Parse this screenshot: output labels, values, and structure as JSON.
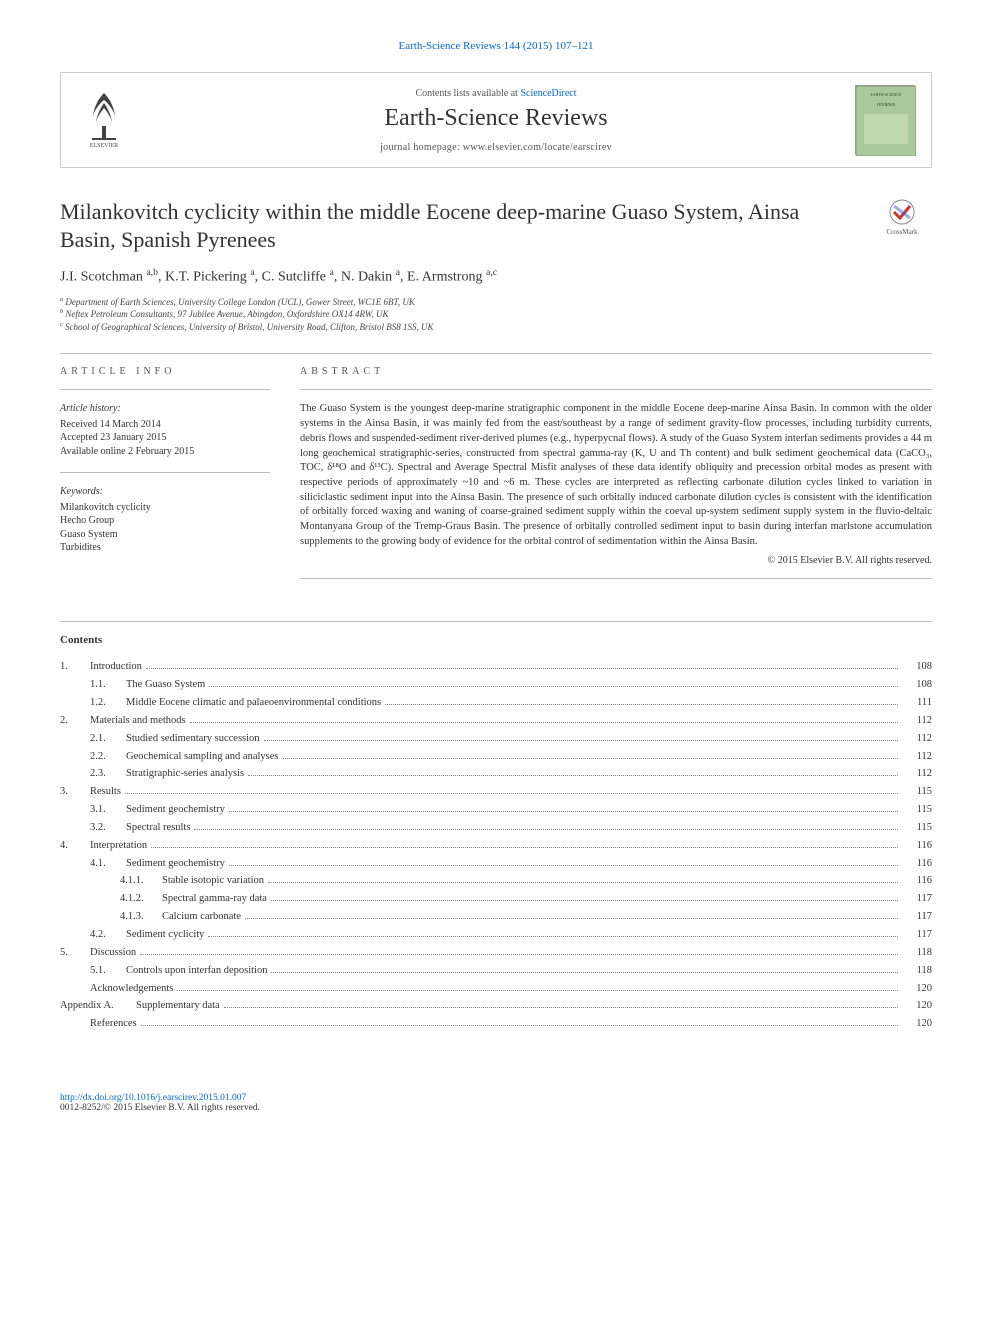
{
  "header_citation_link": "Earth-Science Reviews 144 (2015) 107–121",
  "masthead": {
    "contents_prefix": "Contents lists available at ",
    "contents_link": "ScienceDirect",
    "journal_name": "Earth-Science Reviews",
    "homepage_prefix": "journal homepage: ",
    "homepage_url": "www.elsevier.com/locate/earscirev"
  },
  "article": {
    "title": "Milankovitch cyclicity within the middle Eocene deep-marine Guaso System, Ainsa Basin, Spanish Pyrenees",
    "crossmark_label": "CrossMark",
    "authors": "J.I. Scotchman ",
    "author_sup_1": "a,b",
    "author_2": ", K.T. Pickering ",
    "author_sup_2": "a",
    "author_3": ", C. Sutcliffe ",
    "author_sup_3": "a",
    "author_4": ", N. Dakin ",
    "author_sup_4": "a",
    "author_5": ", E. Armstrong ",
    "author_sup_5": "a,c",
    "affiliations": [
      {
        "mark": "a",
        "text": "Department of Earth Sciences, University College London (UCL), Gower Street, WC1E 6BT, UK"
      },
      {
        "mark": "b",
        "text": "Neftex Petroleum Consultants, 97 Jubilee Avenue, Abingdon, Oxfordshire OX14 4RW, UK"
      },
      {
        "mark": "c",
        "text": "School of Geographical Sciences, University of Bristol, University Road, Clifton, Bristol BS8 1SS, UK"
      }
    ]
  },
  "info": {
    "heading": "ARTICLE INFO",
    "history_label": "Article history:",
    "history": [
      "Received 14 March 2014",
      "Accepted 23 January 2015",
      "Available online 2 February 2015"
    ],
    "keywords_label": "Keywords:",
    "keywords": [
      "Milankovitch cyclicity",
      "Hecho Group",
      "Guaso System",
      "Turbidites"
    ]
  },
  "abstract": {
    "heading": "ABSTRACT",
    "text": "The Guaso System is the youngest deep-marine stratigraphic component in the middle Eocene deep-marine Ainsa Basin. In common with the older systems in the Ainsa Basin, it was mainly fed from the east/southeast by a range of sediment gravity-flow processes, including turbidity currents, debris flows and suspended-sediment river-derived plumes (e.g., hyperpycnal flows). A study of the Guaso System interfan sediments provides a 44 m long geochemical stratigraphic-series, constructed from spectral gamma-ray (K, U and Th content) and bulk sediment geochemical data (CaCO₃, TOC, δ¹⁸O and δ¹³C). Spectral and Average Spectral Misfit analyses of these data identify obliquity and precession orbital modes as present with respective periods of approximately ~10 and ~6 m. These cycles are interpreted as reflecting carbonate dilution cycles linked to variation in siliciclastic sediment input into the Ainsa Basin. The presence of such orbitally induced carbonate dilution cycles is consistent with the identification of orbitally forced waxing and waning of coarse-grained sediment supply within the coeval up-system sediment supply system in the fluvio-deltaic Montanyana Group of the Tremp-Graus Basin. The presence of orbitally controlled sediment input to basin during interfan marlstone accumulation supplements to the growing body of evidence for the orbital control of sedimentation within the Ainsa Basin.",
    "copyright": "© 2015 Elsevier B.V. All rights reserved."
  },
  "contents": {
    "heading": "Contents",
    "items": [
      {
        "level": 0,
        "num": "1.",
        "label": "Introduction",
        "page": "108"
      },
      {
        "level": 1,
        "num": "1.1.",
        "label": "The Guaso System",
        "page": "108"
      },
      {
        "level": 1,
        "num": "1.2.",
        "label": "Middle Eocene climatic and palaeoenvironmental conditions",
        "page": "111"
      },
      {
        "level": 0,
        "num": "2.",
        "label": "Materials and methods",
        "page": "112"
      },
      {
        "level": 1,
        "num": "2.1.",
        "label": "Studied sedimentary succession",
        "page": "112"
      },
      {
        "level": 1,
        "num": "2.2.",
        "label": "Geochemical sampling and analyses",
        "page": "112"
      },
      {
        "level": 1,
        "num": "2.3.",
        "label": "Stratigraphic-series analysis",
        "page": "112"
      },
      {
        "level": 0,
        "num": "3.",
        "label": "Results",
        "page": "115"
      },
      {
        "level": 1,
        "num": "3.1.",
        "label": "Sediment geochemistry",
        "page": "115"
      },
      {
        "level": 1,
        "num": "3.2.",
        "label": "Spectral results",
        "page": "115"
      },
      {
        "level": 0,
        "num": "4.",
        "label": "Interpretation",
        "page": "116"
      },
      {
        "level": 1,
        "num": "4.1.",
        "label": "Sediment geochemistry",
        "page": "116"
      },
      {
        "level": 2,
        "num": "4.1.1.",
        "label": "Stable isotopic variation",
        "page": "116"
      },
      {
        "level": 2,
        "num": "4.1.2.",
        "label": "Spectral gamma-ray data",
        "page": "117"
      },
      {
        "level": 2,
        "num": "4.1.3.",
        "label": "Calcium carbonate",
        "page": "117"
      },
      {
        "level": 1,
        "num": "4.2.",
        "label": "Sediment cyclicity",
        "page": "117"
      },
      {
        "level": 0,
        "num": "5.",
        "label": "Discussion",
        "page": "118"
      },
      {
        "level": 1,
        "num": "5.1.",
        "label": "Controls upon interfan deposition",
        "page": "118"
      },
      {
        "level": 0,
        "num": "",
        "label": "Acknowledgements",
        "page": "120"
      },
      {
        "level": 0,
        "num": "Appendix A.",
        "label": "Supplementary data",
        "page": "120",
        "numwide": true
      },
      {
        "level": 0,
        "num": "",
        "label": "References",
        "page": "120"
      }
    ]
  },
  "footer": {
    "doi": "http://dx.doi.org/10.1016/j.earscirev.2015.01.007",
    "issn_line": "0012-8252/© 2015 Elsevier B.V. All rights reserved."
  },
  "colors": {
    "link": "#0066cc",
    "rule": "#bbbbbb",
    "text": "#333333",
    "muted": "#555555",
    "cover_bg": "#a8c99a",
    "cover_border": "#7a9968"
  }
}
